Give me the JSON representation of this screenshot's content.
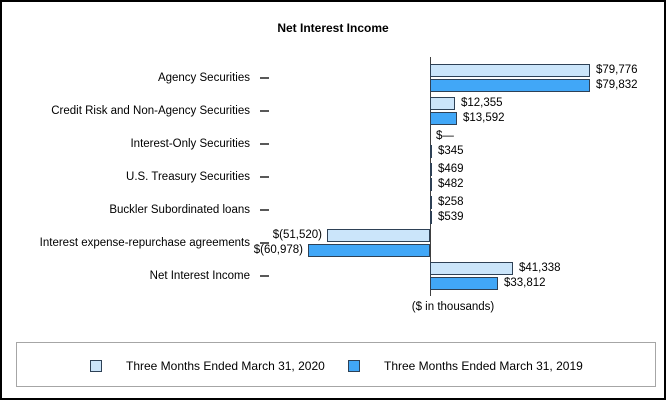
{
  "chart_data": {
    "type": "bar",
    "orientation": "horizontal",
    "title": "Net Interest Income",
    "axis_note": "($ in thousands)",
    "units": "thousands of dollars",
    "grid": false,
    "legend_position": "bottom",
    "xlim": [
      -70000,
      90000
    ],
    "categories": [
      "Agency Securities",
      "Credit Risk and Non-Agency Securities",
      "Interest-Only Securities",
      "U.S. Treasury Securities",
      "Buckler Subordinated loans",
      "Interest expense-repurchase agreements",
      "Net Interest Income"
    ],
    "series": [
      {
        "name": "Three Months Ended March 31, 2020",
        "color": "#CBE5FA",
        "values": [
          79776,
          12355,
          0,
          469,
          258,
          -51520,
          41338
        ],
        "labels": [
          "$79,776",
          "$12,355",
          "$—",
          "$469",
          "$258",
          "$(51,520)",
          "$41,338"
        ]
      },
      {
        "name": "Three Months Ended March 31, 2019",
        "color": "#41A7F7",
        "values": [
          79832,
          13592,
          345,
          482,
          539,
          -60978,
          33812
        ],
        "labels": [
          "$79,832",
          "$13,592",
          "$345",
          "$482",
          "$539",
          "$(60,978)",
          "$33,812"
        ]
      }
    ],
    "colors": {
      "bar_border": "#2E4156",
      "axis_line": "#404040",
      "legend_border": "#A6A6A6"
    }
  }
}
